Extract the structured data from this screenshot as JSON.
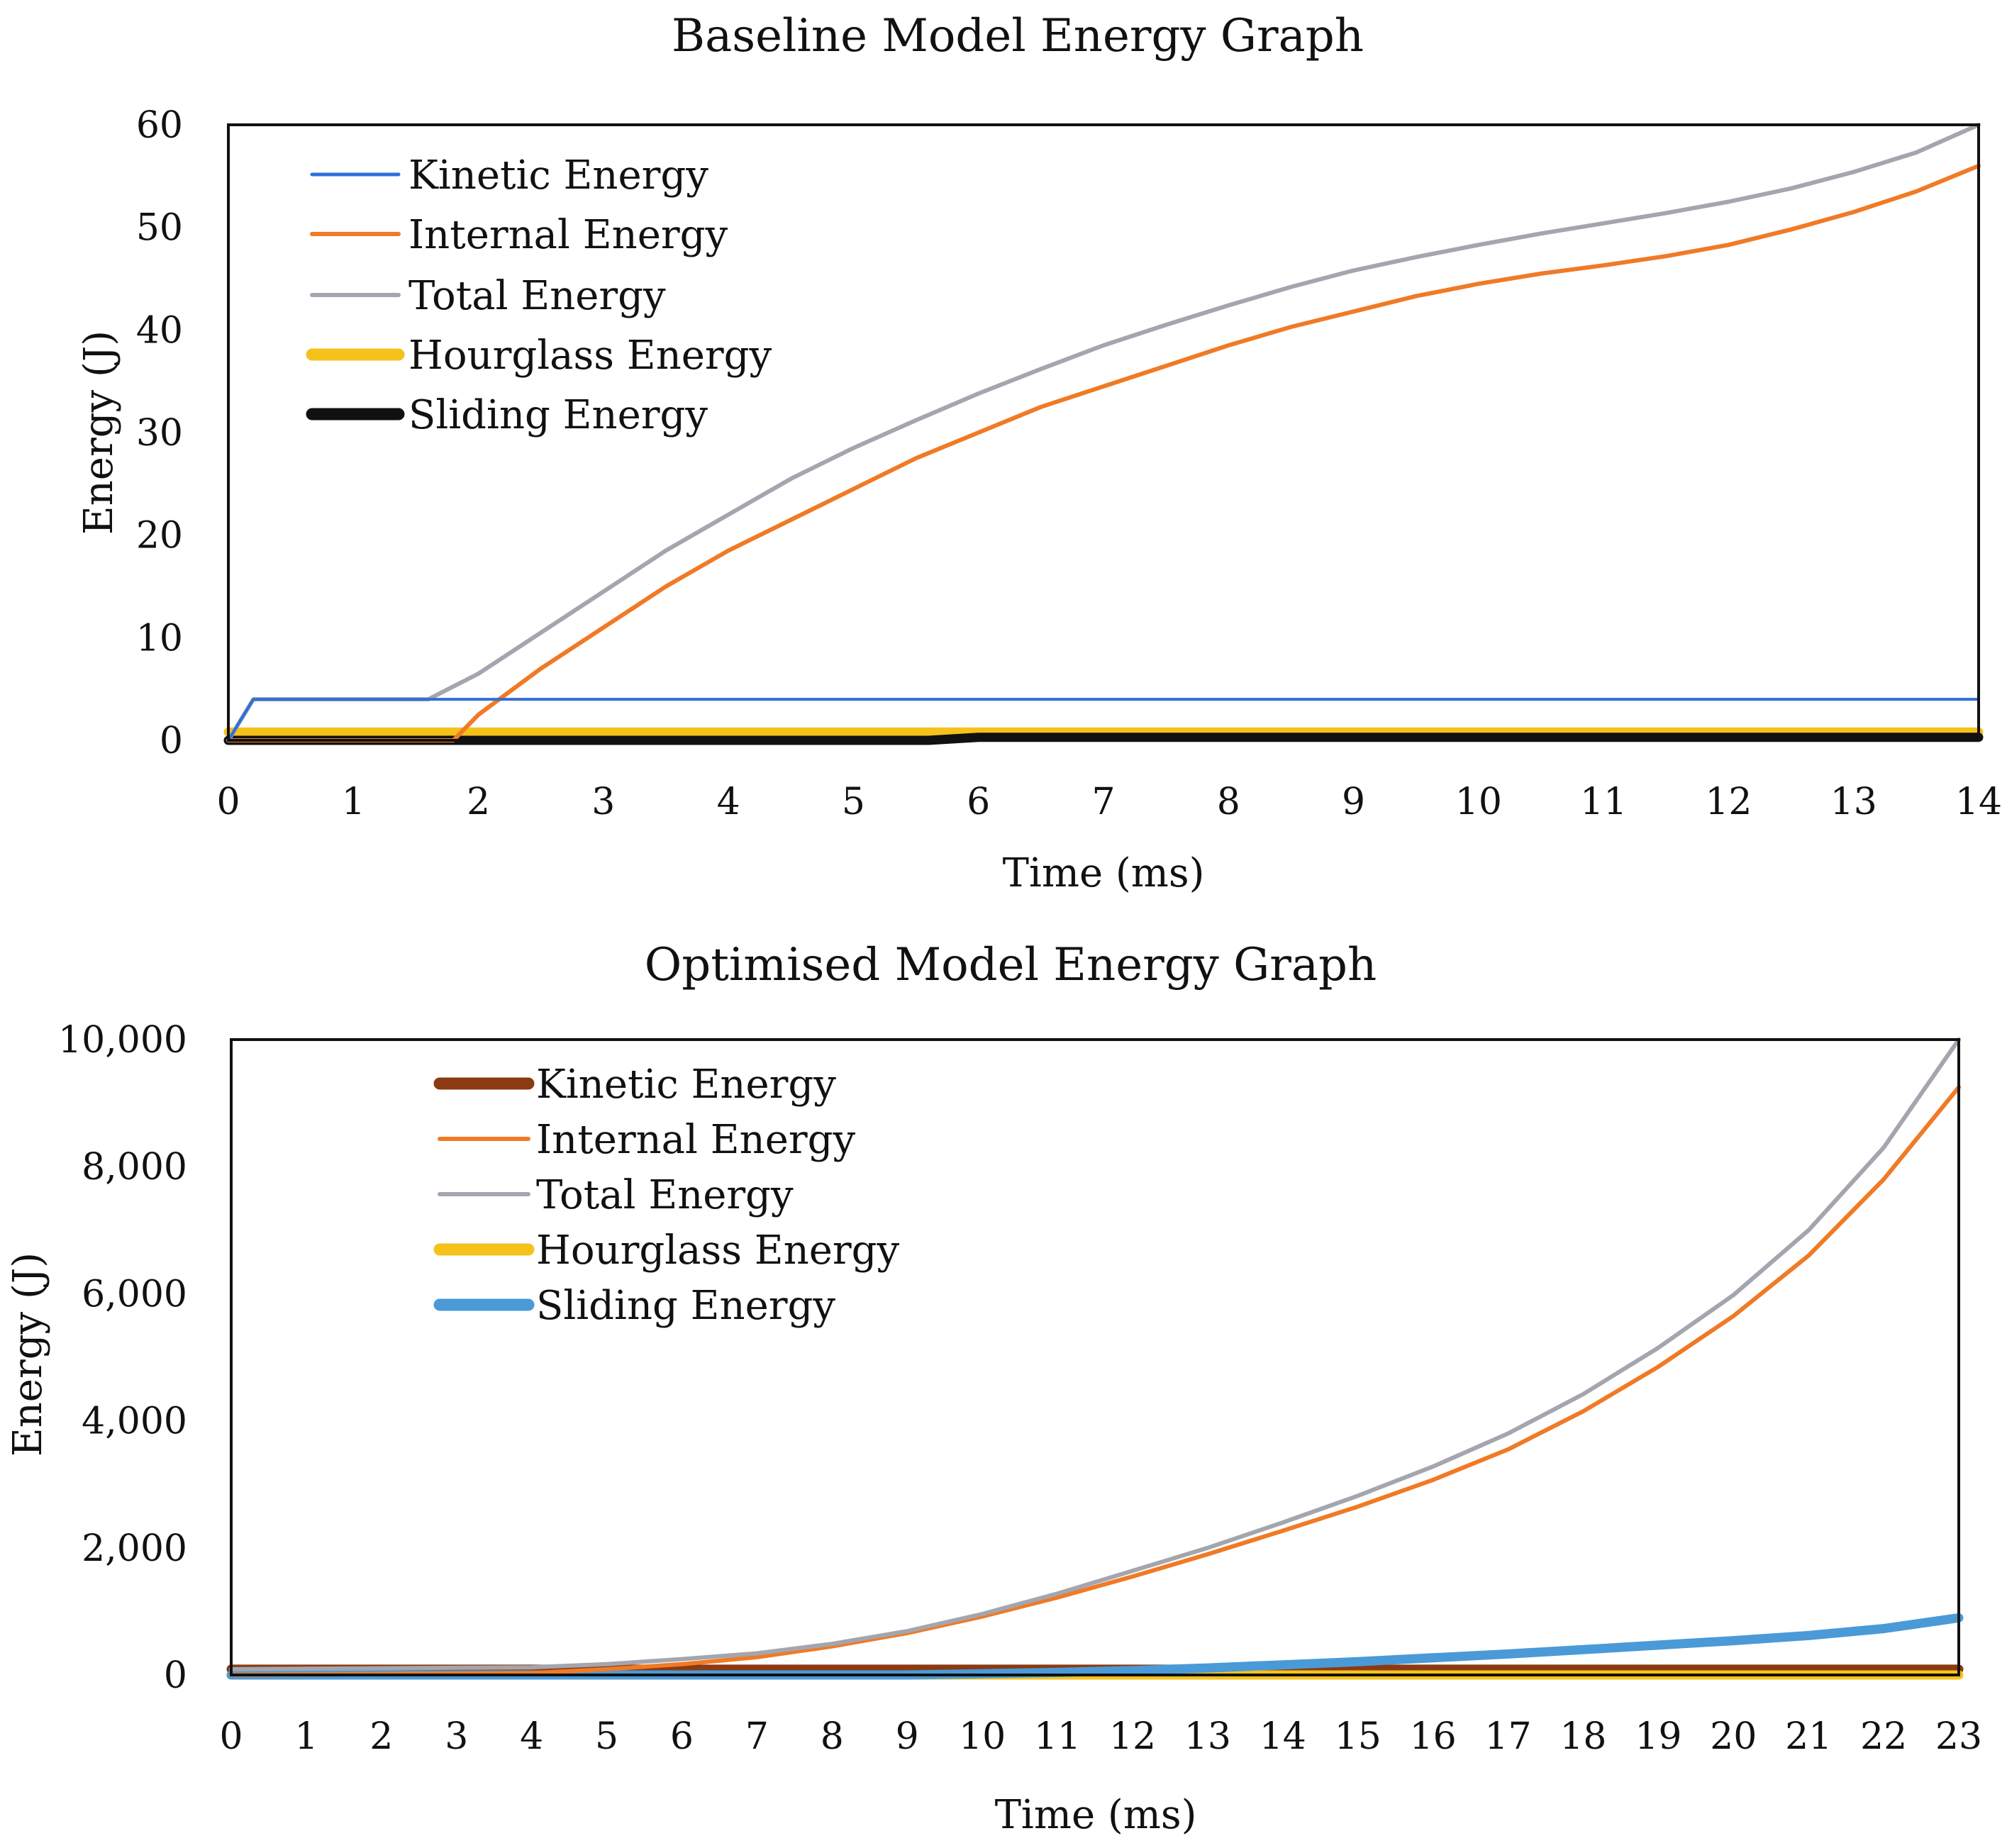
{
  "chart_data": [
    {
      "type": "line",
      "title": "Baseline Model Energy Graph",
      "xlabel": "Time (ms)",
      "ylabel": "Energy (J)",
      "xlim": [
        0,
        14
      ],
      "ylim": [
        0,
        60
      ],
      "x_ticks": [
        0,
        1,
        2,
        3,
        4,
        5,
        6,
        7,
        8,
        9,
        10,
        11,
        12,
        13,
        14
      ],
      "y_ticks": [
        0,
        10,
        20,
        30,
        40,
        50,
        60
      ],
      "y_tick_labels": [
        "0",
        "10",
        "20",
        "30",
        "40",
        "50",
        "60"
      ],
      "grid": false,
      "legend_position": "top-left",
      "series": [
        {
          "name": "Kinetic Energy",
          "color": "#2e6fd8",
          "weight": "thin",
          "x": [
            0,
            0.1,
            0.2,
            14
          ],
          "y": [
            0,
            2,
            4,
            4
          ]
        },
        {
          "name": "Internal Energy",
          "color": "#f07a26",
          "weight": "medium",
          "x": [
            0,
            1.8,
            2,
            2.5,
            3,
            3.5,
            4,
            4.5,
            5,
            5.5,
            6,
            6.5,
            7,
            7.5,
            8,
            8.5,
            9,
            9.5,
            10,
            10.5,
            11,
            11.5,
            12,
            12.5,
            13,
            13.5,
            14
          ],
          "y": [
            0,
            0,
            2.5,
            7,
            11,
            15,
            18.5,
            21.5,
            24.5,
            27.5,
            30,
            32.5,
            34.5,
            36.5,
            38.5,
            40.3,
            41.8,
            43.3,
            44.5,
            45.5,
            46.3,
            47.2,
            48.3,
            49.8,
            51.5,
            53.5,
            56
          ]
        },
        {
          "name": "Total Energy",
          "color": "#a3a6ae",
          "weight": "medium",
          "x": [
            0,
            0.1,
            0.2,
            1.6,
            2,
            2.5,
            3,
            3.5,
            4,
            4.5,
            5,
            5.5,
            6,
            6.5,
            7,
            7.5,
            8,
            8.5,
            9,
            9.5,
            10,
            10.5,
            11,
            11.5,
            12,
            12.5,
            13,
            13.5,
            14
          ],
          "y": [
            0,
            2,
            4,
            4,
            6.5,
            10.5,
            14.5,
            18.5,
            22,
            25.5,
            28.5,
            31.2,
            33.8,
            36.2,
            38.5,
            40.5,
            42.4,
            44.2,
            45.8,
            47.1,
            48.3,
            49.4,
            50.4,
            51.4,
            52.5,
            53.8,
            55.4,
            57.3,
            60
          ]
        },
        {
          "name": "Hourglass Energy",
          "color": "#f5c21b",
          "weight": "thick",
          "x": [
            0,
            14
          ],
          "y": [
            0.8,
            0.8
          ]
        },
        {
          "name": "Sliding Energy",
          "color": "#111111",
          "weight": "thick",
          "x": [
            0,
            5.6,
            6,
            14
          ],
          "y": [
            0,
            0,
            0.3,
            0.3
          ]
        }
      ]
    },
    {
      "type": "line",
      "title": "Optimised Model Energy Graph",
      "xlabel": "Time (ms)",
      "ylabel": "Energy (J)",
      "xlim": [
        0,
        23
      ],
      "ylim": [
        0,
        10000
      ],
      "x_ticks": [
        0,
        1,
        2,
        3,
        4,
        5,
        6,
        7,
        8,
        9,
        10,
        11,
        12,
        13,
        14,
        15,
        16,
        17,
        18,
        19,
        20,
        21,
        22,
        23
      ],
      "y_ticks": [
        0,
        2000,
        4000,
        6000,
        8000,
        10000
      ],
      "y_tick_labels": [
        "0",
        "2,000",
        "4,000",
        "6,000",
        "8,000",
        "10,000"
      ],
      "grid": false,
      "legend_position": "top-left",
      "series": [
        {
          "name": "Kinetic Energy",
          "color": "#8b3a12",
          "weight": "thick",
          "x": [
            0,
            23
          ],
          "y": [
            90,
            90
          ]
        },
        {
          "name": "Internal Energy",
          "color": "#f07a26",
          "weight": "medium",
          "x": [
            0,
            4,
            5,
            6,
            7,
            8,
            9,
            10,
            11,
            12,
            13,
            14,
            15,
            16,
            17,
            18,
            19,
            20,
            21,
            22,
            23
          ],
          "y": [
            0,
            30,
            90,
            170,
            280,
            450,
            660,
            920,
            1220,
            1550,
            1900,
            2270,
            2650,
            3070,
            3550,
            4150,
            4850,
            5650,
            6600,
            7800,
            9250
          ]
        },
        {
          "name": "Total Energy",
          "color": "#a3a6ae",
          "weight": "medium",
          "x": [
            0,
            4,
            5,
            6,
            7,
            8,
            9,
            10,
            11,
            12,
            13,
            14,
            15,
            16,
            17,
            18,
            19,
            20,
            21,
            22,
            23
          ],
          "y": [
            90,
            120,
            170,
            250,
            340,
            490,
            690,
            960,
            1280,
            1640,
            2000,
            2400,
            2820,
            3280,
            3800,
            4420,
            5150,
            5980,
            7000,
            8300,
            10000
          ]
        },
        {
          "name": "Hourglass Energy",
          "color": "#f5c21b",
          "weight": "thick",
          "x": [
            0,
            23
          ],
          "y": [
            0,
            0
          ]
        },
        {
          "name": "Sliding Energy",
          "color": "#4a9ad8",
          "weight": "thick",
          "x": [
            0,
            9,
            10,
            11,
            12,
            13,
            14,
            15,
            16,
            17,
            18,
            19,
            20,
            21,
            22,
            23
          ],
          "y": [
            0,
            0,
            20,
            40,
            70,
            110,
            160,
            210,
            270,
            330,
            400,
            470,
            540,
            620,
            730,
            900
          ]
        }
      ]
    }
  ]
}
